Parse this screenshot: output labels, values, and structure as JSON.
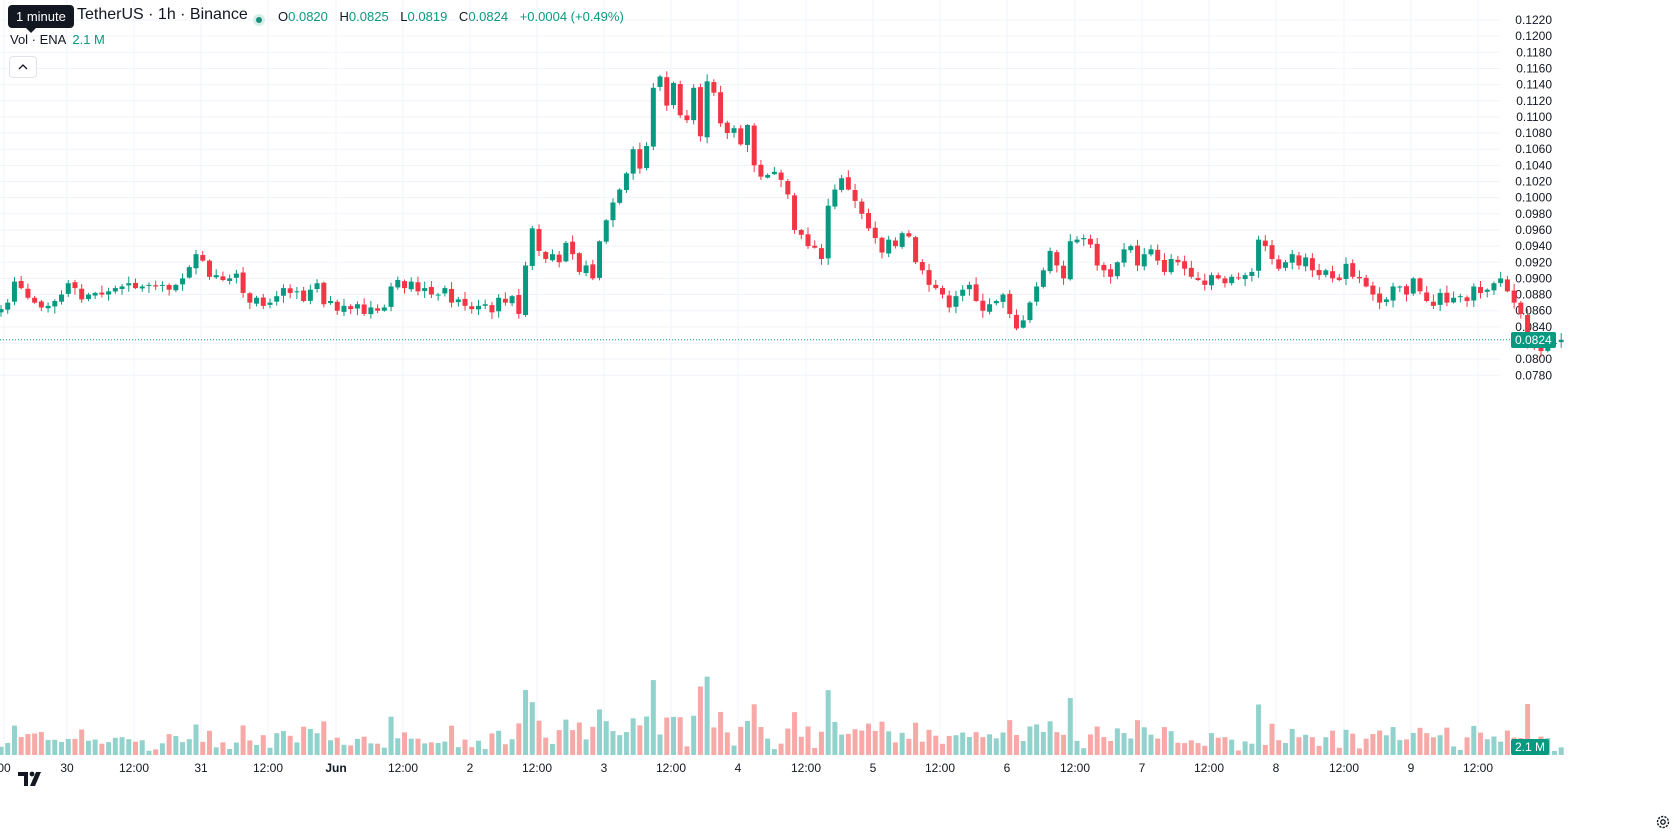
{
  "header": {
    "tooltip": "1 minute",
    "symbol": "TetherUS · 1h · Binance",
    "ohlc": {
      "o_label": "O",
      "o": "0.0820",
      "h_label": "H",
      "h": "0.0825",
      "l_label": "L",
      "l": "0.0819",
      "c_label": "C",
      "c": "0.0824",
      "change": "+0.0004 (+0.49%)"
    },
    "volume_label": "Vol · ENA",
    "volume_value": "2.1 M"
  },
  "colors": {
    "up": "#089981",
    "down": "#f23645",
    "vol_up": "#92d2cc",
    "vol_down": "#f7a9a7"
  },
  "icons": {
    "collapse": "chevron-up-icon",
    "logo": "tradingview-logo-icon",
    "settings": "gear-icon"
  },
  "badges": {
    "last_price": "0.0824",
    "last_volume": "2.1 M"
  },
  "chart_data": {
    "type": "candlestick",
    "title": "",
    "interval": "1h",
    "y_axis": {
      "ticks": [
        "0.1220",
        "0.1200",
        "0.1180",
        "0.1160",
        "0.1140",
        "0.1120",
        "0.1100",
        "0.1080",
        "0.1060",
        "0.1040",
        "0.1020",
        "0.1000",
        "0.0980",
        "0.0960",
        "0.0940",
        "0.0920",
        "0.0900",
        "0.0880",
        "0.0860",
        "0.0840",
        "0.0820",
        "0.0800",
        "0.0780"
      ],
      "range": [
        0.0764,
        0.1222
      ]
    },
    "x_axis": {
      "ticks": [
        "00",
        "30",
        "12:00",
        "31",
        "12:00",
        "Jun",
        "12:00",
        "2",
        "12:00",
        "3",
        "12:00",
        "4",
        "12:00",
        "5",
        "12:00",
        "6",
        "12:00",
        "7",
        "12:00",
        "8",
        "12:00",
        "9",
        "12:00"
      ]
    },
    "grid": true,
    "last_price": 0.0824,
    "ohlc_path": [
      0.0862,
      0.087,
      0.0896,
      0.0888,
      0.0876,
      0.087,
      0.0864,
      0.0866,
      0.0872,
      0.088,
      0.0894,
      0.0888,
      0.0874,
      0.088,
      0.0882,
      0.088,
      0.0884,
      0.0888,
      0.089,
      0.0894,
      0.0888,
      0.089,
      0.0892,
      0.089,
      0.0892,
      0.0886,
      0.0892,
      0.09,
      0.0914,
      0.093,
      0.0922,
      0.0902,
      0.0904,
      0.0898,
      0.09,
      0.0906,
      0.0882,
      0.087,
      0.0876,
      0.0866,
      0.087,
      0.0878,
      0.0888,
      0.0882,
      0.0884,
      0.0872,
      0.0886,
      0.0894,
      0.0868,
      0.0872,
      0.086,
      0.0866,
      0.0862,
      0.0868,
      0.0856,
      0.0864,
      0.086,
      0.0864,
      0.089,
      0.0898,
      0.0888,
      0.0896,
      0.0884,
      0.0888,
      0.088,
      0.088,
      0.0888,
      0.087,
      0.0874,
      0.0866,
      0.0862,
      0.0866,
      0.0868,
      0.0858,
      0.0876,
      0.087,
      0.0878,
      0.0856,
      0.0916,
      0.0962,
      0.0934,
      0.0924,
      0.093,
      0.092,
      0.0944,
      0.093,
      0.0908,
      0.0916,
      0.09,
      0.0946,
      0.0972,
      0.0994,
      0.101,
      0.103,
      0.106,
      0.1036,
      0.1064,
      0.1136,
      0.115,
      0.1114,
      0.1142,
      0.1102,
      0.1096,
      0.1136,
      0.1076,
      0.1144,
      0.113,
      0.1092,
      0.108,
      0.1086,
      0.1066,
      0.109,
      0.104,
      0.1026,
      0.1028,
      0.1032,
      0.1022,
      0.1004,
      0.096,
      0.0954,
      0.094,
      0.0938,
      0.0924,
      0.099,
      0.101,
      0.1024,
      0.101,
      0.0996,
      0.098,
      0.0962,
      0.095,
      0.0932,
      0.0948,
      0.094,
      0.0956,
      0.0952,
      0.092,
      0.091,
      0.0892,
      0.0888,
      0.088,
      0.0864,
      0.0878,
      0.0886,
      0.0892,
      0.0872,
      0.086,
      0.0868,
      0.0872,
      0.088,
      0.0856,
      0.0838,
      0.0848,
      0.087,
      0.089,
      0.091,
      0.0934,
      0.0916,
      0.09,
      0.0946,
      0.0948,
      0.095,
      0.0942,
      0.0916,
      0.091,
      0.0902,
      0.092,
      0.0936,
      0.094,
      0.0916,
      0.093,
      0.0936,
      0.0922,
      0.0908,
      0.0924,
      0.092,
      0.0912,
      0.0902,
      0.0898,
      0.0892,
      0.0904,
      0.09,
      0.0894,
      0.0902,
      0.09,
      0.0904,
      0.0908,
      0.0948,
      0.094,
      0.0924,
      0.0912,
      0.092,
      0.093,
      0.0916,
      0.0926,
      0.091,
      0.0904,
      0.091,
      0.09,
      0.0898,
      0.0918,
      0.0902,
      0.09,
      0.089,
      0.088,
      0.087,
      0.0874,
      0.089,
      0.089,
      0.088,
      0.09,
      0.0884,
      0.0872,
      0.0866,
      0.0882,
      0.087,
      0.0876,
      0.0878,
      0.0872,
      0.089,
      0.0882,
      0.0886,
      0.0894,
      0.09,
      0.0884,
      0.087,
      0.0856,
      0.0816,
      0.0814,
      0.081,
      0.0818,
      0.082,
      0.0824
    ],
    "volume": {
      "last": "2.1 M"
    }
  }
}
